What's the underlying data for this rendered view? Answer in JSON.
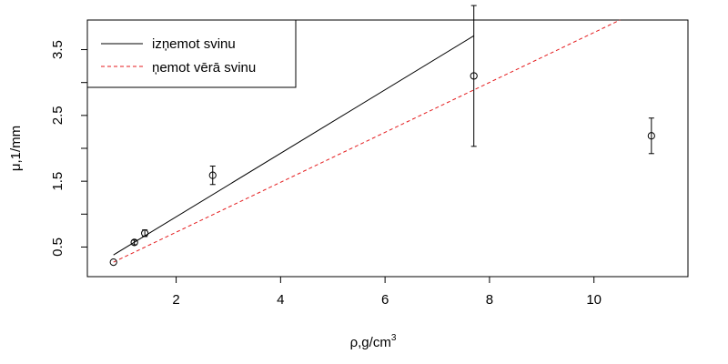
{
  "chart_data": {
    "type": "scatter",
    "title": "",
    "xlabel": "ρ,g/cm",
    "xlabel_superscript": "3",
    "ylabel": "μ,1/mm",
    "xlim": [
      0.3,
      11.8
    ],
    "ylim": [
      0.05,
      3.95
    ],
    "xticks": [
      2,
      4,
      6,
      8,
      10
    ],
    "xtick_labels": [
      "2",
      "4",
      "6",
      "8",
      "10"
    ],
    "yticks": [
      0.5,
      1.0,
      1.5,
      2.0,
      2.5,
      3.0,
      3.5
    ],
    "ytick_labels": [
      "0.5",
      "",
      "1.5",
      "",
      "2.5",
      "",
      "3.5"
    ],
    "grid": false,
    "legend_position": "top-left",
    "points": [
      {
        "x": 0.8,
        "y": 0.27,
        "err": 0.0
      },
      {
        "x": 1.2,
        "y": 0.57,
        "err": 0.035
      },
      {
        "x": 1.4,
        "y": 0.71,
        "err": 0.05
      },
      {
        "x": 2.7,
        "y": 1.59,
        "err": 0.14
      },
      {
        "x": 7.7,
        "y": 3.1,
        "err": 1.07
      },
      {
        "x": 11.1,
        "y": 2.19,
        "err": 0.27
      }
    ],
    "series": [
      {
        "name": "izņemot svinu",
        "color": "#000000",
        "style": "solid",
        "x": [
          0.8,
          7.7
        ],
        "y": [
          0.38,
          3.71
        ]
      },
      {
        "name": "ņemot vērā svinu",
        "color": "#e41a1c",
        "style": "dashed",
        "x": [
          0.8,
          10.5
        ],
        "y": [
          0.27,
          3.95
        ]
      }
    ]
  }
}
